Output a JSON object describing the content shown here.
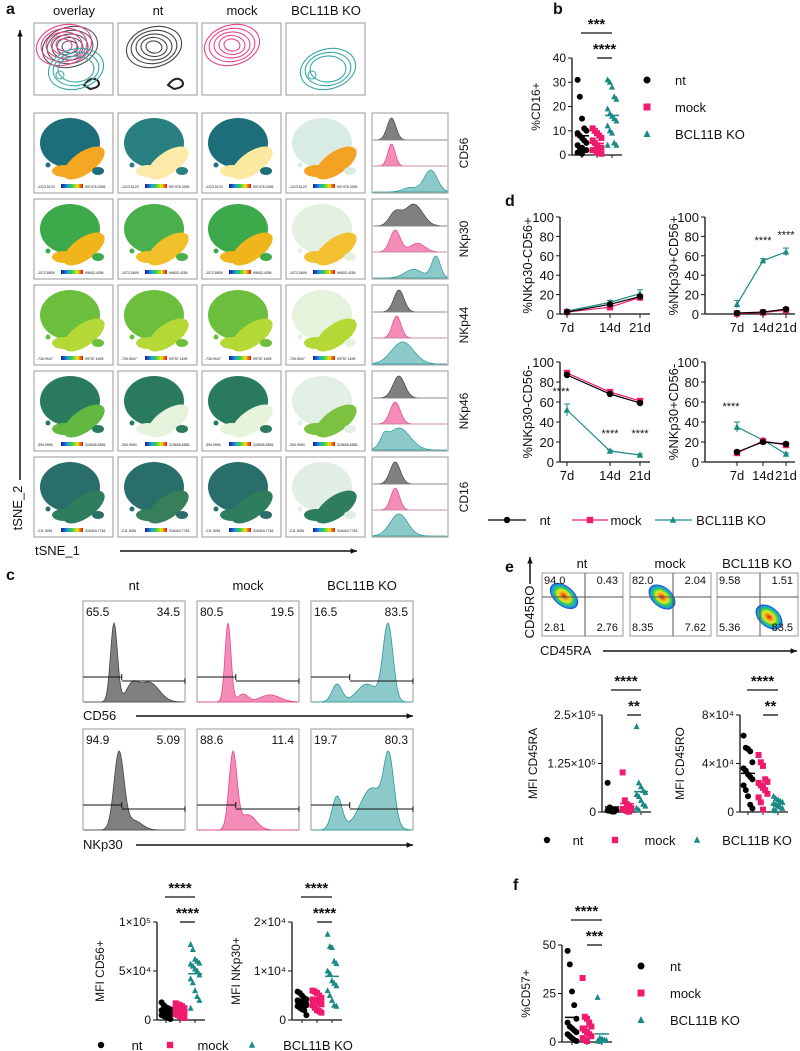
{
  "panel_labels": {
    "a": "a",
    "b": "b",
    "c": "c",
    "d": "d",
    "e": "e",
    "f": "f"
  },
  "groups": [
    {
      "name": "nt",
      "color": "#000000",
      "marker": "circle"
    },
    {
      "name": "mock",
      "color": "#f01a6e",
      "marker": "square"
    },
    {
      "name": "BCL11B KO",
      "color": "#1a8a86",
      "marker": "triangle"
    }
  ],
  "panel_a": {
    "columns": [
      "overlay",
      "nt",
      "mock",
      "BCL11B KO"
    ],
    "x_axis": "tSNE_1",
    "y_axis": "tSNE_2",
    "markers": [
      {
        "name": "CD56",
        "min": "-1213.5123",
        "max": "997476.3296"
      },
      {
        "name": "NKp30",
        "min": "-1072.5809",
        "max": "99602.4259"
      },
      {
        "name": "NKp44",
        "min": "-726.9947",
        "max": "99757.1699"
      },
      {
        "name": "NKp46",
        "min": "-394.9950",
        "max": "315606.5555"
      },
      {
        "name": "CD16",
        "min": "-211.9281",
        "max": "315404.7746"
      }
    ]
  },
  "panel_c": {
    "columns": [
      "nt",
      "mock",
      "BCL11B KO"
    ],
    "rows": [
      {
        "marker": "CD56",
        "percentages": [
          [
            "65.5",
            "34.5"
          ],
          [
            "80.5",
            "19.5"
          ],
          [
            "16.5",
            "83.5"
          ]
        ]
      },
      {
        "marker": "NKp30",
        "percentages": [
          [
            "94.9",
            "5.09"
          ],
          [
            "88.6",
            "11.4"
          ],
          [
            "19.7",
            "80.3"
          ]
        ]
      }
    ]
  },
  "panel_e": {
    "columns": [
      "nt",
      "mock",
      "BCL11B KO"
    ],
    "x_axis": "CD45RA",
    "y_axis": "CD45RO",
    "quadrants": [
      [
        "94.0",
        "0.43",
        "2.81",
        "2.76"
      ],
      [
        "82.0",
        "2.04",
        "8.35",
        "7.62"
      ],
      [
        "9.58",
        "1.51",
        "5.36",
        "83.5"
      ]
    ]
  },
  "chart_data": [
    {
      "id": "b",
      "type": "scatter",
      "ylabel": "%CD16+",
      "ylim": [
        0,
        40
      ],
      "yticks": [
        0,
        10,
        20,
        30,
        40
      ],
      "ytick_labels": [
        "0",
        "10",
        "20",
        "30",
        "40"
      ],
      "categories": [
        "nt",
        "mock",
        "BCL11B KO"
      ],
      "series": [
        {
          "name": "nt",
          "values": [
            31,
            24,
            15,
            11,
            10,
            9,
            8,
            7,
            6,
            5,
            4,
            3,
            3,
            2,
            2,
            1,
            1,
            0.5
          ]
        },
        {
          "name": "mock",
          "values": [
            11,
            10,
            9,
            8,
            7,
            6,
            5,
            4,
            3,
            3,
            2,
            2,
            1,
            1,
            0.5
          ]
        },
        {
          "name": "BCL11B KO",
          "values": [
            31,
            30,
            28,
            24,
            23,
            19,
            17,
            16,
            15,
            14,
            12,
            10,
            9,
            5,
            4,
            4
          ]
        }
      ],
      "significance": [
        {
          "label": "****",
          "from": 1,
          "to": 2
        },
        {
          "label": "***",
          "from": 0,
          "to": 2
        }
      ],
      "legend": "right"
    },
    {
      "id": "c1",
      "type": "scatter",
      "ylabel": "MFI CD56+",
      "ylim": [
        0,
        100000
      ],
      "yticks": [
        0,
        50000,
        100000
      ],
      "ytick_labels": [
        "0",
        "5×10⁴",
        "1×10⁵"
      ],
      "categories": [
        "nt",
        "mock",
        "BCL11B KO"
      ],
      "series": [
        {
          "name": "nt",
          "values": [
            18000,
            15000,
            13000,
            12000,
            11000,
            10000,
            9000,
            8000,
            7000,
            6000,
            5000,
            4000,
            3000,
            2000,
            1000
          ]
        },
        {
          "name": "mock",
          "values": [
            17000,
            16000,
            15000,
            14000,
            12000,
            11000,
            10000,
            9000,
            8000,
            7000,
            6000,
            5000,
            4000,
            3000,
            2000
          ]
        },
        {
          "name": "BCL11B KO",
          "values": [
            77000,
            72000,
            62000,
            60000,
            58000,
            57000,
            55000,
            52000,
            50000,
            46000,
            42000,
            38000,
            30000,
            24000,
            20000,
            12000
          ]
        }
      ],
      "significance": [
        {
          "label": "****",
          "from": 1,
          "to": 2
        },
        {
          "label": "****",
          "from": 0,
          "to": 2
        }
      ],
      "legend": "bottom"
    },
    {
      "id": "c2",
      "type": "scatter",
      "ylabel": "MFI NKp30+",
      "ylim": [
        0,
        20000
      ],
      "yticks": [
        0,
        10000,
        20000
      ],
      "ytick_labels": [
        "0",
        "1×10⁴",
        "2×10⁴"
      ],
      "categories": [
        "nt",
        "mock",
        "BCL11B KO"
      ],
      "series": [
        {
          "name": "nt",
          "values": [
            5800,
            5500,
            5000,
            4500,
            4200,
            4000,
            3800,
            3500,
            3200,
            3000,
            2800,
            2500,
            2200,
            2000,
            1000
          ]
        },
        {
          "name": "mock",
          "values": [
            6000,
            5800,
            5500,
            5000,
            4500,
            4200,
            4000,
            3800,
            3500,
            3200,
            3000,
            2500,
            2000,
            1800,
            1500
          ]
        },
        {
          "name": "BCL11B KO",
          "values": [
            17500,
            15000,
            14800,
            12000,
            11500,
            10000,
            9500,
            8000,
            7500,
            7000,
            6000,
            5000,
            4000,
            3000,
            2800
          ]
        }
      ],
      "significance": [
        {
          "label": "****",
          "from": 1,
          "to": 2
        },
        {
          "label": "****",
          "from": 0,
          "to": 2
        }
      ],
      "legend": "bottom"
    },
    {
      "id": "d1",
      "type": "line",
      "ylabel": "%NKp30-CD56+",
      "ylim": [
        0,
        100
      ],
      "yticks": [
        0,
        20,
        40,
        60,
        80,
        100
      ],
      "ytick_labels": [
        "0",
        "20",
        "40",
        "60",
        "80",
        "100"
      ],
      "x": [
        "7d",
        "14d",
        "21d"
      ],
      "series": [
        {
          "name": "nt",
          "values": [
            2,
            10,
            18
          ]
        },
        {
          "name": "mock",
          "values": [
            2,
            7,
            17
          ]
        },
        {
          "name": "BCL11B KO",
          "values": [
            3,
            12,
            21
          ],
          "error": [
            1,
            2,
            4
          ]
        }
      ],
      "annotations": []
    },
    {
      "id": "d2",
      "type": "line",
      "ylabel": "%NKp30+CD56+",
      "ylim": [
        0,
        100
      ],
      "yticks": [
        0,
        20,
        40,
        60,
        80,
        100
      ],
      "ytick_labels": [
        "0",
        "20",
        "40",
        "60",
        "80",
        "100"
      ],
      "x": [
        "7d",
        "14d",
        "21d"
      ],
      "series": [
        {
          "name": "nt",
          "values": [
            1,
            2,
            5
          ]
        },
        {
          "name": "mock",
          "values": [
            0.5,
            1.5,
            4
          ]
        },
        {
          "name": "BCL11B KO",
          "values": [
            10,
            55,
            64
          ],
          "error": [
            4,
            2,
            4
          ]
        }
      ],
      "annotations": [
        {
          "x_index": 1,
          "y": 72,
          "label": "****"
        },
        {
          "x_index": 2,
          "y": 78,
          "label": "****"
        }
      ]
    },
    {
      "id": "d3",
      "type": "line",
      "ylabel": "%NKp30-CD56-",
      "ylim": [
        0,
        100
      ],
      "yticks": [
        0,
        20,
        40,
        60,
        80,
        100
      ],
      "ytick_labels": [
        "0",
        "20",
        "40",
        "60",
        "80",
        "100"
      ],
      "x": [
        "7d",
        "14d",
        "21d"
      ],
      "series": [
        {
          "name": "nt",
          "values": [
            87,
            68,
            59
          ]
        },
        {
          "name": "mock",
          "values": [
            89,
            70,
            61
          ]
        },
        {
          "name": "BCL11B KO",
          "values": [
            52,
            11,
            7
          ],
          "error": [
            6,
            1,
            1
          ]
        }
      ],
      "annotations": [
        {
          "x_index": 0,
          "y": 67,
          "label": "****"
        },
        {
          "x_index": 1,
          "y": 25,
          "label": "****"
        },
        {
          "x_index": 2,
          "y": 25,
          "label": "****"
        }
      ]
    },
    {
      "id": "d4",
      "type": "line",
      "ylabel": "%NKp30+CD56-",
      "ylim": [
        0,
        100
      ],
      "yticks": [
        0,
        20,
        40,
        60,
        80,
        100
      ],
      "ytick_labels": [
        "0",
        "20",
        "40",
        "60",
        "80",
        "100"
      ],
      "x": [
        "7d",
        "14d",
        "21d"
      ],
      "series": [
        {
          "name": "nt",
          "values": [
            10,
            20,
            18
          ]
        },
        {
          "name": "mock",
          "values": [
            9,
            21,
            17
          ]
        },
        {
          "name": "BCL11B KO",
          "values": [
            35,
            22,
            8
          ],
          "error": [
            5,
            1,
            1
          ]
        }
      ],
      "annotations": [
        {
          "x_index": 0,
          "y": 52,
          "label": "****"
        }
      ]
    },
    {
      "id": "e1",
      "type": "scatter",
      "ylabel": "MFI CD45RA",
      "ylim": [
        0,
        250000
      ],
      "yticks": [
        0,
        125000,
        250000
      ],
      "ytick_labels": [
        "0",
        "1.25×10⁵",
        "2.5×10⁵"
      ],
      "categories": [
        "nt",
        "mock",
        "BCL11B KO"
      ],
      "series": [
        {
          "name": "nt",
          "values": [
            75000,
            12000,
            8000,
            6000,
            5000,
            4000,
            3000,
            2000,
            1000
          ]
        },
        {
          "name": "mock",
          "values": [
            102000,
            30000,
            20000,
            15000,
            10000,
            8000,
            5000,
            3000,
            1000
          ]
        },
        {
          "name": "BCL11B KO",
          "values": [
            220000,
            75000,
            65000,
            55000,
            50000,
            45000,
            40000,
            30000,
            20000,
            15000,
            10000,
            5000
          ]
        }
      ],
      "significance": [
        {
          "label": "**",
          "from": 1,
          "to": 2
        },
        {
          "label": "****",
          "from": 0,
          "to": 2
        }
      ],
      "legend": "bottom"
    },
    {
      "id": "e2",
      "type": "scatter",
      "ylabel": "MFI CD45RO",
      "ylim": [
        0,
        80000
      ],
      "yticks": [
        0,
        40000,
        80000
      ],
      "ytick_labels": [
        "0",
        "4×10⁴",
        "8×10⁴"
      ],
      "categories": [
        "nt",
        "mock",
        "BCL11B KO"
      ],
      "series": [
        {
          "name": "nt",
          "values": [
            63000,
            53000,
            52000,
            50000,
            41000,
            36000,
            34000,
            31000,
            29000,
            27000,
            22000,
            18000,
            13000,
            6000,
            3000
          ]
        },
        {
          "name": "mock",
          "values": [
            47000,
            41000,
            38000,
            27000,
            25000,
            24000,
            22000,
            20000,
            18000,
            15000,
            12000,
            8000,
            2000
          ]
        },
        {
          "name": "BCL11B KO",
          "values": [
            13000,
            11000,
            10000,
            9000,
            8000,
            7000,
            6000,
            5000,
            4000,
            3000,
            2000,
            1000
          ]
        }
      ],
      "significance": [
        {
          "label": "**",
          "from": 1,
          "to": 2
        },
        {
          "label": "****",
          "from": 0,
          "to": 2
        }
      ],
      "legend": "bottom"
    },
    {
      "id": "f",
      "type": "scatter",
      "ylabel": "%CD57+",
      "ylim": [
        0,
        50
      ],
      "yticks": [
        0,
        25,
        50
      ],
      "ytick_labels": [
        "0",
        "25",
        "50"
      ],
      "categories": [
        "nt",
        "mock",
        "BCL11B KO"
      ],
      "series": [
        {
          "name": "nt",
          "values": [
            47,
            40,
            26,
            19,
            12,
            10,
            8,
            7,
            6,
            5,
            4,
            3,
            2,
            1,
            0.5
          ]
        },
        {
          "name": "mock",
          "values": [
            33,
            13,
            12,
            10,
            8,
            7,
            6,
            5,
            4,
            3,
            2,
            1,
            0.5
          ]
        },
        {
          "name": "BCL11B KO",
          "values": [
            23,
            2,
            1.5,
            1,
            0.8,
            0.5,
            0.3
          ]
        }
      ],
      "significance": [
        {
          "label": "***",
          "from": 1,
          "to": 2
        },
        {
          "label": "****",
          "from": 0,
          "to": 2
        }
      ],
      "legend": "right"
    }
  ]
}
